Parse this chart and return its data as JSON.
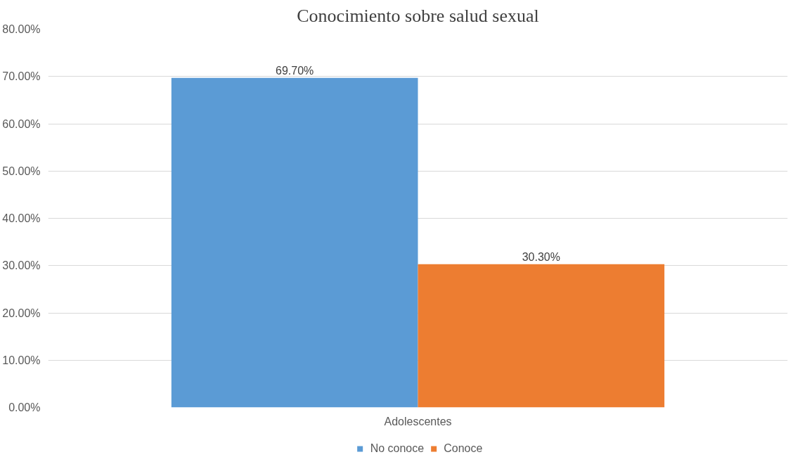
{
  "chart_data": {
    "type": "bar",
    "title": "Conocimiento sobre salud sexual",
    "categories": [
      "Adolescentes"
    ],
    "series": [
      {
        "name": "No conoce",
        "color": "#5b9bd5",
        "values": [
          69.7
        ],
        "value_labels": [
          "69.70%"
        ]
      },
      {
        "name": "Conoce",
        "color": "#ed7d31",
        "values": [
          30.3
        ],
        "value_labels": [
          "30.30%"
        ]
      }
    ],
    "ylim": [
      0,
      80
    ],
    "yticks": [
      {
        "value": 0,
        "label": "0.00%"
      },
      {
        "value": 10,
        "label": "10.00%"
      },
      {
        "value": 20,
        "label": "20.00%"
      },
      {
        "value": 30,
        "label": "30.00%"
      },
      {
        "value": 40,
        "label": "40.00%"
      },
      {
        "value": 50,
        "label": "50.00%"
      },
      {
        "value": 60,
        "label": "60.00%"
      },
      {
        "value": 70,
        "label": "70.00%"
      },
      {
        "value": 80,
        "label": "80.00%"
      }
    ],
    "grid": "y",
    "legend": "bottom"
  }
}
